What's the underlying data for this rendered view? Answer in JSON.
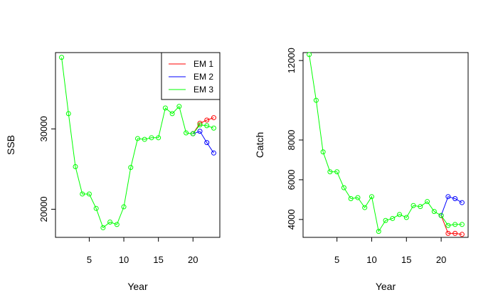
{
  "chart_data": [
    {
      "type": "line",
      "xlabel": "Year",
      "ylabel": "SSB",
      "xlim": [
        1,
        23
      ],
      "ylim": [
        16500,
        39500
      ],
      "x_ticks": [
        5,
        10,
        15,
        20
      ],
      "y_ticks": [
        20000,
        30000
      ],
      "y_tick_labels": [
        "20000",
        "30000"
      ],
      "legend": {
        "placement": "top-right",
        "entries": [
          {
            "label": "EM 1",
            "color": "#ff0000"
          },
          {
            "label": "EM 2",
            "color": "#0000ff"
          },
          {
            "label": "EM 3",
            "color": "#00ff00"
          }
        ]
      },
      "series": [
        {
          "name": "EM 1",
          "color": "#ff0000",
          "x": [
            20,
            21,
            22,
            23
          ],
          "y": [
            29400,
            30700,
            31100,
            31400
          ]
        },
        {
          "name": "EM 2",
          "color": "#0000ff",
          "x": [
            20,
            21,
            22,
            23
          ],
          "y": [
            29400,
            29700,
            28300,
            27000
          ]
        },
        {
          "name": "EM 3",
          "color": "#00ff00",
          "x": [
            1,
            2,
            3,
            4,
            5,
            6,
            7,
            8,
            9,
            10,
            11,
            12,
            13,
            14,
            15,
            16,
            17,
            18,
            19,
            20,
            21,
            22,
            23
          ],
          "y": [
            38900,
            31900,
            25300,
            21900,
            21900,
            20100,
            17700,
            18400,
            18100,
            20300,
            25200,
            28800,
            28700,
            28900,
            28900,
            32600,
            31900,
            32800,
            29500,
            29400,
            30500,
            30400,
            30100
          ]
        }
      ]
    },
    {
      "type": "line",
      "xlabel": "Year",
      "ylabel": "Catch",
      "xlim": [
        1,
        23
      ],
      "ylim": [
        3100,
        12400
      ],
      "x_ticks": [
        5,
        10,
        15,
        20
      ],
      "y_ticks": [
        4000,
        6000,
        8000,
        12000
      ],
      "y_tick_labels": [
        "4000",
        "6000",
        "8000",
        "12000"
      ],
      "series": [
        {
          "name": "EM 1",
          "color": "#ff0000",
          "x": [
            20,
            21,
            22,
            23
          ],
          "y": [
            4200,
            3300,
            3300,
            3250
          ]
        },
        {
          "name": "EM 2",
          "color": "#0000ff",
          "x": [
            20,
            21,
            22,
            23
          ],
          "y": [
            4200,
            5150,
            5050,
            4850
          ]
        },
        {
          "name": "EM 3",
          "color": "#00ff00",
          "x": [
            1,
            2,
            3,
            4,
            5,
            6,
            7,
            8,
            9,
            10,
            11,
            12,
            13,
            14,
            15,
            16,
            17,
            18,
            19,
            20,
            21,
            22,
            23
          ],
          "y": [
            12300,
            10000,
            7400,
            6400,
            6400,
            5600,
            5050,
            5100,
            4600,
            5150,
            3400,
            3950,
            4050,
            4250,
            4100,
            4700,
            4650,
            4900,
            4400,
            4200,
            3700,
            3750,
            3750
          ]
        }
      ]
    }
  ]
}
